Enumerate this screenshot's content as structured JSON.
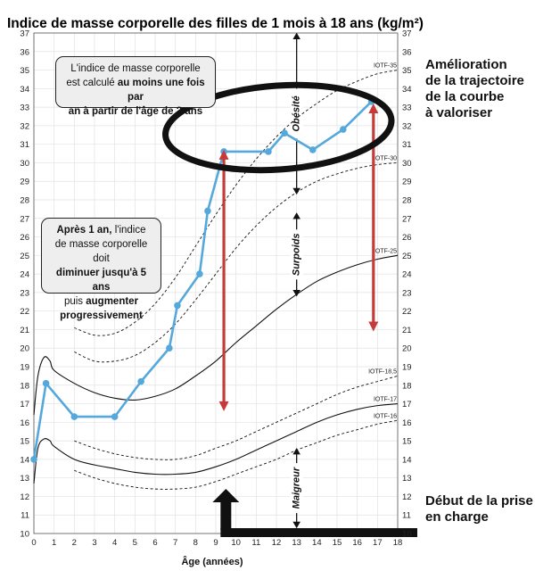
{
  "chart_data": {
    "type": "line",
    "title": "Indice de masse corporelle des filles de 1 mois à 18 ans (kg/m²)",
    "xlabel": "Âge (années)",
    "ylabel": "",
    "xlim": [
      0,
      18
    ],
    "ylim": [
      10,
      37
    ],
    "x_ticks": [
      0,
      1,
      2,
      3,
      4,
      5,
      6,
      7,
      8,
      9,
      10,
      11,
      12,
      13,
      14,
      15,
      16,
      17,
      18
    ],
    "y_ticks": [
      10,
      11,
      12,
      13,
      14,
      15,
      16,
      17,
      18,
      19,
      20,
      21,
      22,
      23,
      24,
      25,
      26,
      27,
      28,
      29,
      30,
      31,
      32,
      33,
      34,
      35,
      36,
      37
    ],
    "grid": true,
    "reference_curves": [
      {
        "name": "IOTF-35",
        "style": "dashed",
        "x": [
          2,
          3,
          4,
          5,
          6,
          7,
          8,
          9,
          10,
          11,
          12,
          13,
          14,
          15,
          16,
          17,
          18
        ],
        "y": [
          21.1,
          20.7,
          20.8,
          21.4,
          22.4,
          23.8,
          25.5,
          27.2,
          28.8,
          30.2,
          31.4,
          32.4,
          33.2,
          33.9,
          34.4,
          34.8,
          35.0
        ]
      },
      {
        "name": "IOTF-30",
        "style": "dashed",
        "x": [
          2,
          3,
          4,
          5,
          6,
          7,
          8,
          9,
          10,
          11,
          12,
          13,
          14,
          15,
          16,
          17,
          18
        ],
        "y": [
          19.8,
          19.3,
          19.3,
          19.6,
          20.3,
          21.3,
          22.6,
          24.0,
          25.4,
          26.6,
          27.6,
          28.4,
          29.0,
          29.4,
          29.7,
          29.9,
          30.0
        ]
      },
      {
        "name": "IOTF-25",
        "style": "solid",
        "x": [
          0,
          0.2,
          0.5,
          0.8,
          1,
          2,
          3,
          4,
          5,
          6,
          7,
          8,
          9,
          10,
          11,
          12,
          13,
          14,
          15,
          16,
          17,
          18
        ],
        "y": [
          16.4,
          18.5,
          19.5,
          19.3,
          18.8,
          18.1,
          17.6,
          17.3,
          17.2,
          17.4,
          17.8,
          18.5,
          19.3,
          20.3,
          21.2,
          22.1,
          22.9,
          23.6,
          24.1,
          24.5,
          24.8,
          25.0
        ]
      },
      {
        "name": "IOTF-18,5",
        "style": "dashed",
        "x": [
          2,
          3,
          4,
          5,
          6,
          7,
          8,
          9,
          10,
          11,
          12,
          13,
          14,
          15,
          16,
          17,
          18
        ],
        "y": [
          15.0,
          14.6,
          14.3,
          14.1,
          14.0,
          14.0,
          14.2,
          14.6,
          15.0,
          15.5,
          16.0,
          16.5,
          17.0,
          17.5,
          17.9,
          18.2,
          18.5
        ]
      },
      {
        "name": "IOTF-17",
        "style": "solid",
        "x": [
          0,
          0.2,
          0.5,
          0.8,
          1,
          2,
          3,
          4,
          5,
          6,
          7,
          8,
          9,
          10,
          11,
          12,
          13,
          14,
          15,
          16,
          17,
          18
        ],
        "y": [
          12.7,
          14.6,
          15.1,
          15.0,
          14.7,
          14.0,
          13.7,
          13.5,
          13.3,
          13.2,
          13.2,
          13.3,
          13.6,
          14.0,
          14.5,
          15.0,
          15.5,
          16.0,
          16.4,
          16.7,
          16.9,
          17.0
        ]
      },
      {
        "name": "IOTF-16",
        "style": "dashed",
        "x": [
          2,
          3,
          4,
          5,
          6,
          7,
          8,
          9,
          10,
          11,
          12,
          13,
          14,
          15,
          16,
          17,
          18
        ],
        "y": [
          13.4,
          13.0,
          12.7,
          12.5,
          12.4,
          12.4,
          12.5,
          12.8,
          13.2,
          13.6,
          14.0,
          14.5,
          14.9,
          15.3,
          15.6,
          15.9,
          16.1
        ]
      }
    ],
    "patient_series": {
      "x": [
        0,
        0.6,
        2,
        4,
        5.3,
        6.7,
        7.1,
        8.2,
        8.6,
        9.4,
        11.6,
        12.4,
        13.8,
        15.3,
        16.7
      ],
      "y": [
        14,
        18.1,
        16.3,
        16.3,
        18.2,
        20.0,
        22.3,
        24.0,
        27.4,
        30.6,
        30.6,
        31.6,
        30.7,
        31.8,
        33.3
      ],
      "color": "#55a8dc"
    },
    "zones": [
      {
        "label": "Obésité",
        "x": 13,
        "y_from": 37,
        "y_to": 28.3
      },
      {
        "label": "Surpoids",
        "x": 13,
        "y_from": 27.3,
        "y_to": 22.8
      },
      {
        "label": "Maigreur",
        "x": 13,
        "y_from": 14.6,
        "y_to": 10.3
      }
    ],
    "red_arrows": [
      {
        "x": 9.4,
        "y_from": 16.6,
        "y_to": 30.7
      },
      {
        "x": 16.8,
        "y_from": 20.9,
        "y_to": 33.2
      }
    ],
    "red_color": "#c73a3a",
    "ellipse_center": {
      "x": 12.1,
      "y": 31.9
    },
    "intervention_age": 9.5
  },
  "annotations": {
    "callout_top": {
      "line1": "L'indice de masse corporelle",
      "line2_pre": "est calculé ",
      "line2_bold": "au moins une fois par",
      "line3_bold": "an à partir de l'âge de 2 ans"
    },
    "callout_mid": {
      "line1_bold": "Après 1 an,",
      "line1_rest": " l'indice",
      "line2": "de masse corporelle doit",
      "line3_bold": "diminuer jusqu'à 5 ans",
      "line4_pre": "puis ",
      "line4_bold": "augmenter",
      "line5_bold": "progressivement"
    },
    "right_note_top": [
      "Amélioration",
      "de la trajectoire",
      "de la courbe",
      "à valoriser"
    ],
    "right_note_bottom": [
      "Début de la prise",
      "en charge"
    ]
  }
}
